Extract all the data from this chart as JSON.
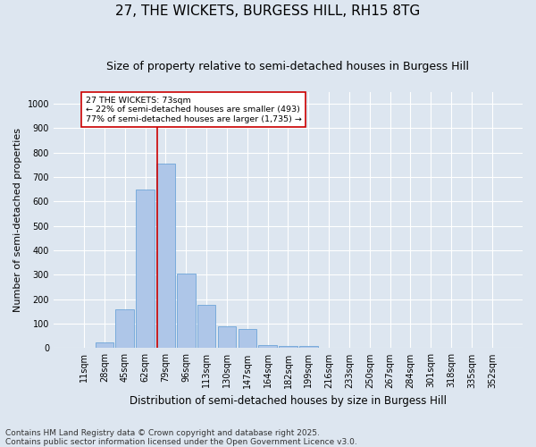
{
  "title": "27, THE WICKETS, BURGESS HILL, RH15 8TG",
  "subtitle": "Size of property relative to semi-detached houses in Burgess Hill",
  "xlabel": "Distribution of semi-detached houses by size in Burgess Hill",
  "ylabel": "Number of semi-detached properties",
  "categories": [
    "11sqm",
    "28sqm",
    "45sqm",
    "62sqm",
    "79sqm",
    "96sqm",
    "113sqm",
    "130sqm",
    "147sqm",
    "164sqm",
    "182sqm",
    "199sqm",
    "216sqm",
    "233sqm",
    "250sqm",
    "267sqm",
    "284sqm",
    "301sqm",
    "318sqm",
    "335sqm",
    "352sqm"
  ],
  "values": [
    3,
    25,
    160,
    648,
    755,
    305,
    178,
    90,
    80,
    12,
    10,
    10,
    0,
    0,
    0,
    0,
    0,
    0,
    0,
    0,
    2
  ],
  "bar_color": "#aec6e8",
  "bar_edge_color": "#5b9bd5",
  "background_color": "#dde6f0",
  "grid_color": "#ffffff",
  "annotation_box_text": "27 THE WICKETS: 73sqm\n← 22% of semi-detached houses are smaller (493)\n77% of semi-detached houses are larger (1,735) →",
  "annotation_box_color": "#cc0000",
  "vline_x_index": 3.58,
  "vline_color": "#cc0000",
  "ylim": [
    0,
    1050
  ],
  "yticks": [
    0,
    100,
    200,
    300,
    400,
    500,
    600,
    700,
    800,
    900,
    1000
  ],
  "footnote": "Contains HM Land Registry data © Crown copyright and database right 2025.\nContains public sector information licensed under the Open Government Licence v3.0.",
  "title_fontsize": 11,
  "subtitle_fontsize": 9,
  "xlabel_fontsize": 8.5,
  "ylabel_fontsize": 8,
  "tick_fontsize": 7,
  "footnote_fontsize": 6.5
}
